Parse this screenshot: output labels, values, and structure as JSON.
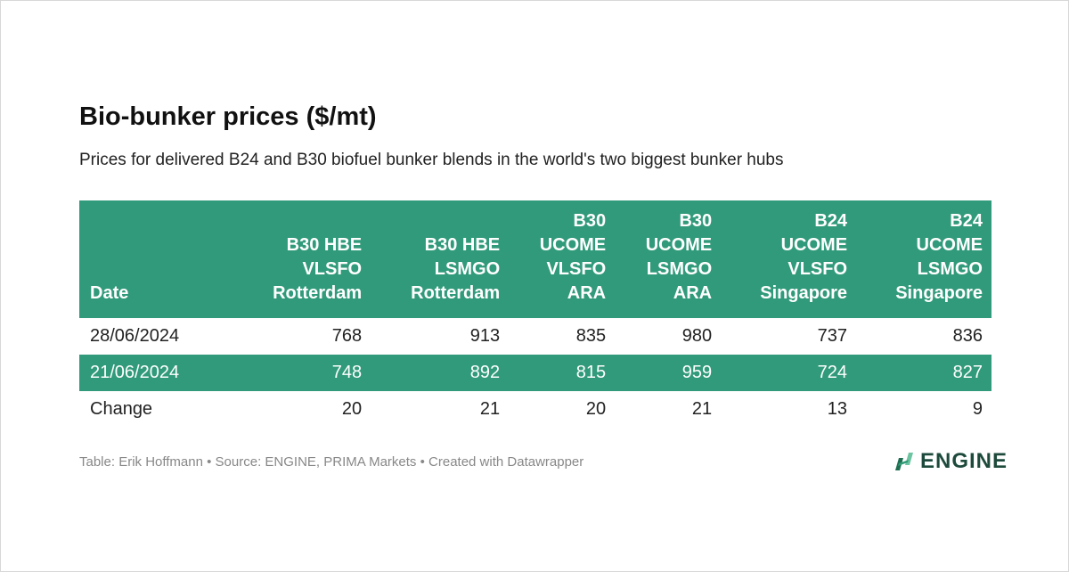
{
  "title": "Bio-bunker prices ($/mt)",
  "subtitle": "Prices for delivered B24 and B30 biofuel bunker blends in the world's two biggest bunker hubs",
  "table": {
    "headers": [
      [
        "Date"
      ],
      [
        "B30 HBE",
        "VLSFO",
        "Rotterdam"
      ],
      [
        "B30 HBE",
        "LSMGO",
        "Rotterdam"
      ],
      [
        "B30",
        "UCOME",
        "VLSFO",
        "ARA"
      ],
      [
        "B30",
        "UCOME",
        "LSMGO",
        "ARA"
      ],
      [
        "B24",
        "UCOME",
        "VLSFO",
        "Singapore"
      ],
      [
        "B24",
        "UCOME",
        "LSMGO",
        "Singapore"
      ]
    ],
    "rows": [
      [
        "28/06/2024",
        "768",
        "913",
        "835",
        "980",
        "737",
        "836"
      ],
      [
        "21/06/2024",
        "748",
        "892",
        "815",
        "959",
        "724",
        "827"
      ],
      [
        "Change",
        "20",
        "21",
        "20",
        "21",
        "13",
        "9"
      ]
    ]
  },
  "footer": "Table: Erik Hoffmann • Source: ENGINE, PRIMA Markets • Created with Datawrapper",
  "logo": {
    "text": "ENGINE",
    "icon": "engine-logo-icon"
  },
  "colors": {
    "accent": "#319a7a"
  }
}
